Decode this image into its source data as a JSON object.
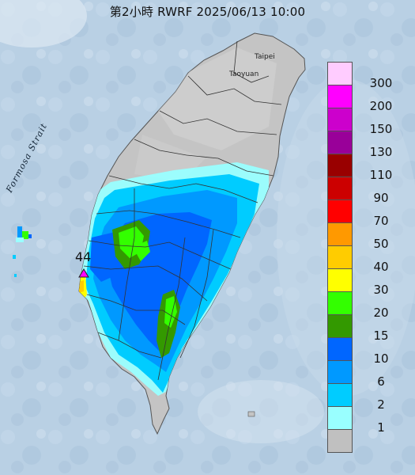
{
  "title": "第2小時  RWRF 2025/06/13 10:00",
  "places": {
    "taipei": "Taipei",
    "taoyuan": "Taoyuan",
    "strait": "Formosa Strait"
  },
  "max_marker": "44",
  "legend": [
    {
      "label": "300",
      "color": "#ffccff"
    },
    {
      "label": "200",
      "color": "#ff00ff"
    },
    {
      "label": "150",
      "color": "#cc00cc"
    },
    {
      "label": "130",
      "color": "#990099"
    },
    {
      "label": "110",
      "color": "#990000"
    },
    {
      "label": "90",
      "color": "#cc0000"
    },
    {
      "label": "70",
      "color": "#ff0000"
    },
    {
      "label": "50",
      "color": "#ff9900"
    },
    {
      "label": "40",
      "color": "#ffcc00"
    },
    {
      "label": "30",
      "color": "#ffff00"
    },
    {
      "label": "20",
      "color": "#33ff00"
    },
    {
      "label": "15",
      "color": "#339900"
    },
    {
      "label": "10",
      "color": "#0066ff"
    },
    {
      "label": "6",
      "color": "#0099ff"
    },
    {
      "label": "2",
      "color": "#00ccff"
    },
    {
      "label": "1",
      "color": "#99ffff"
    },
    {
      "label": "",
      "color": "#c0c0c0"
    }
  ],
  "colors": {
    "ocean": "#b9d0e4",
    "land_base": "#c4c4c4"
  }
}
